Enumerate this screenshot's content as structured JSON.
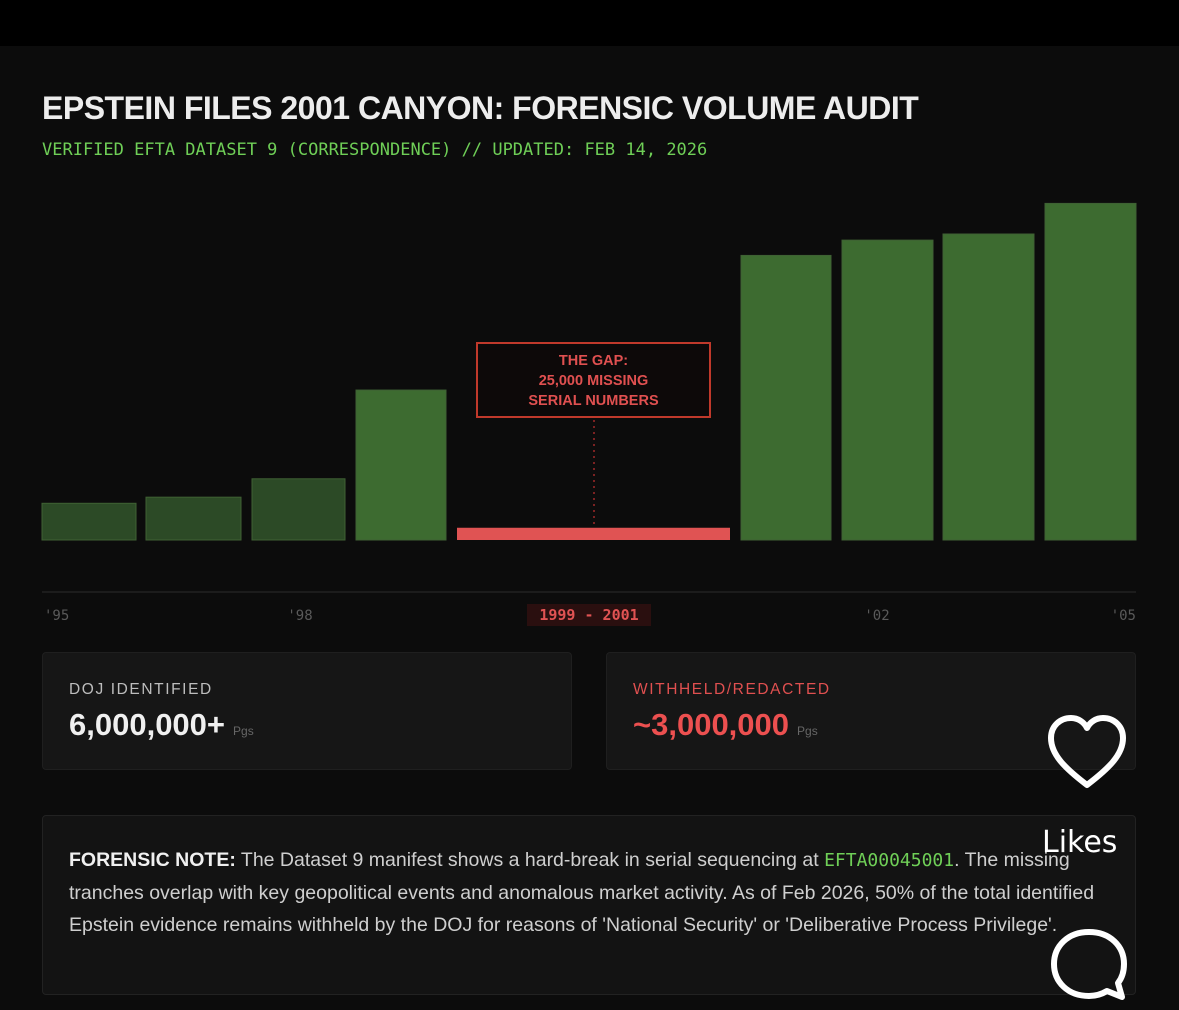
{
  "header": {
    "title": "EPSTEIN FILES 2001 CANYON: FORENSIC VOLUME AUDIT",
    "subtitle": "VERIFIED EFTA DATASET 9 (CORRESPONDENCE) // UPDATED: FEB 14, 2026"
  },
  "chart_data": {
    "type": "bar",
    "bars": [
      {
        "rel_height": 0.12
      },
      {
        "rel_height": 0.14
      },
      {
        "rel_height": 0.2
      },
      {
        "rel_height": 0.49
      },
      {
        "rel_height": 0.04,
        "highlight": true
      },
      {
        "rel_height": 0.93
      },
      {
        "rel_height": 0.98
      },
      {
        "rel_height": 1.0
      },
      {
        "rel_height": 1.1
      }
    ],
    "x_tick_labels": [
      "'95",
      "'98",
      "1999 - 2001",
      "'02",
      "'05"
    ],
    "highlight_tick": "1999 - 2001",
    "annotation": [
      "THE GAP:",
      "25,000 MISSING",
      "SERIAL NUMBERS"
    ],
    "colors": {
      "bar": "#3d6b30",
      "bar_dark": "#2c4a26",
      "gap": "#e05353",
      "highlight": "#c0392b"
    }
  },
  "stats": {
    "doj": {
      "label": "DOJ IDENTIFIED",
      "value": "6,000,000+",
      "unit": "Pgs"
    },
    "withheld": {
      "label": "WITHHELD/REDACTED",
      "value": "~3,000,000",
      "unit": "Pgs"
    }
  },
  "note": {
    "label": "FORENSIC NOTE:",
    "text_before_code": " The Dataset 9 manifest shows a hard-break in serial sequencing at ",
    "code": "EFTA00045001",
    "text_after_code": ". The missing tranches overlap with key geopolitical events and anomalous market activity. As of Feb 2026, 50% of the total identified Epstein evidence remains withheld by the DOJ for reasons of 'National Security' or 'Deliberative Process Privilege'."
  },
  "overlay": {
    "likes_label": "Likes",
    "heart_icon": "heart-icon",
    "comment_icon": "comment-icon"
  }
}
